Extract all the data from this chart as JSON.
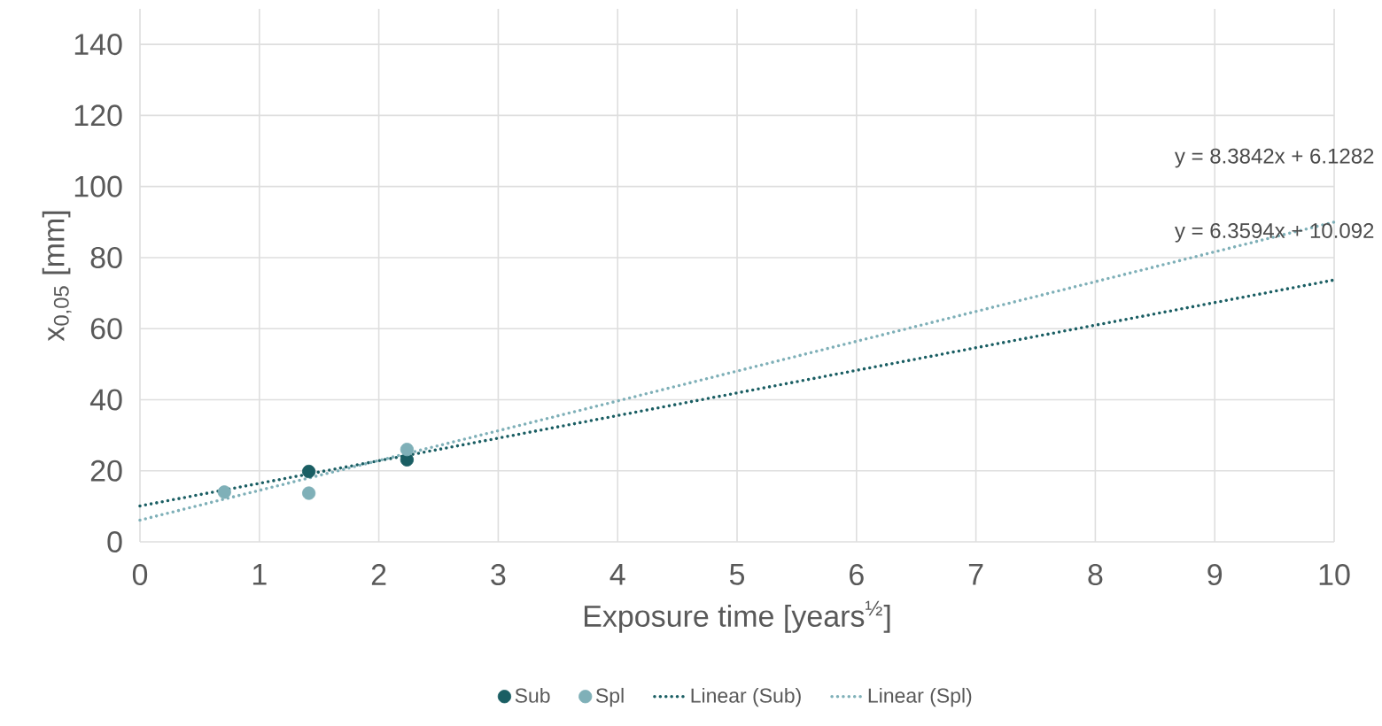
{
  "chart_data": {
    "type": "scatter",
    "xlabel": "Exposure time [years$^{½}$]",
    "ylabel": "x$_{0,05}$ [mm]",
    "xlim": [
      0,
      10
    ],
    "xticks": [
      0,
      1,
      2,
      3,
      4,
      5,
      6,
      7,
      8,
      9,
      10
    ],
    "ylim": [
      0,
      150
    ],
    "yticks": [
      0,
      20,
      40,
      60,
      80,
      100,
      120,
      140
    ],
    "grid": true,
    "legend": "bottom",
    "series": [
      {
        "name": "Sub",
        "marker": "circle",
        "color": "#1a5e63",
        "x": [
          1.414,
          2.236
        ],
        "values": [
          19.8,
          23.1
        ]
      },
      {
        "name": "Spl",
        "marker": "circle",
        "color": "#7fb0b8",
        "x": [
          0.707,
          1.414,
          2.236
        ],
        "values": [
          14.0,
          13.7,
          26.0
        ]
      },
      {
        "name": "Linear (Sub)",
        "type": "line",
        "marker": "none",
        "line_style": "dotted",
        "color": "#1a5e63",
        "x": [
          0,
          10
        ],
        "values": [
          10.1,
          73.7
        ]
      },
      {
        "name": "Linear (Spl)",
        "type": "line",
        "marker": "none",
        "line_style": "dotted",
        "color": "#7fb0b8",
        "x": [
          0,
          10
        ],
        "values": [
          6.1,
          90.0
        ]
      }
    ],
    "annotations": [
      "y = 8.3842x + 6.1282",
      "y = 6.3594x + 10.092"
    ]
  }
}
